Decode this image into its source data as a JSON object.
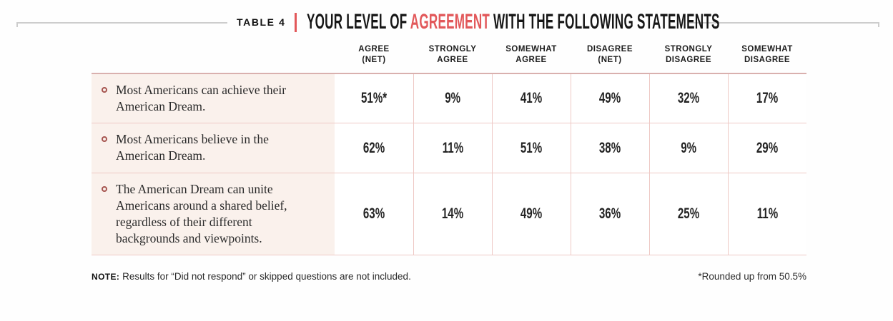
{
  "title": {
    "kicker": "TABLE 4",
    "prefix": "YOUR LEVEL OF ",
    "highlight": "AGREEMENT",
    "suffix": " WITH THE FOLLOWING STATEMENTS"
  },
  "columns": [
    {
      "top": "AGREE",
      "bottom": "(NET)"
    },
    {
      "top": "STRONGLY",
      "bottom": "AGREE"
    },
    {
      "top": "SOMEWHAT",
      "bottom": "AGREE"
    },
    {
      "top": "DISAGREE",
      "bottom": "(NET)"
    },
    {
      "top": "STRONGLY",
      "bottom": "DISAGREE"
    },
    {
      "top": "SOMEWHAT",
      "bottom": "DISAGREE"
    }
  ],
  "rows": [
    {
      "statement": "Most Americans can achieve their American Dream.",
      "values": [
        "51%*",
        "9%",
        "41%",
        "49%",
        "32%",
        "17%"
      ]
    },
    {
      "statement": "Most Americans believe in the American Dream.",
      "values": [
        "62%",
        "11%",
        "51%",
        "38%",
        "9%",
        "29%"
      ]
    },
    {
      "statement": "The American Dream can unite Americans around a shared belief, regardless of their different backgrounds and viewpoints.",
      "values": [
        "63%",
        "14%",
        "49%",
        "36%",
        "25%",
        "11%"
      ]
    }
  ],
  "note_label": "NOTE:",
  "note_text": " Results for “Did not respond” or skipped questions are not included.",
  "footnote": "*Rounded up from 50.5%",
  "colors": {
    "accent": "#e2585a",
    "grid_line": "#eec9c5",
    "header_rule": "#d9b0ae",
    "statement_bg": "#faf1ec",
    "bullet_ring": "#a65550",
    "bracket_rule": "#cdcdcd"
  },
  "chart_data": {
    "type": "table",
    "title": "TABLE 4 | YOUR LEVEL OF AGREEMENT WITH THE FOLLOWING STATEMENTS",
    "columns": [
      "AGREE (NET)",
      "STRONGLY AGREE",
      "SOMEWHAT AGREE",
      "DISAGREE (NET)",
      "STRONGLY DISAGREE",
      "SOMEWHAT DISAGREE"
    ],
    "rows": [
      {
        "statement": "Most Americans can achieve their American Dream.",
        "values_pct": [
          51,
          9,
          41,
          49,
          32,
          17
        ]
      },
      {
        "statement": "Most Americans believe in the American Dream.",
        "values_pct": [
          62,
          11,
          51,
          38,
          9,
          29
        ]
      },
      {
        "statement": "The American Dream can unite Americans around a shared belief, regardless of their different backgrounds and viewpoints.",
        "values_pct": [
          63,
          14,
          49,
          36,
          25,
          11
        ]
      }
    ],
    "footnote": "*Rounded up from 50.5%",
    "note": "Results for “Did not respond” or skipped questions are not included."
  }
}
